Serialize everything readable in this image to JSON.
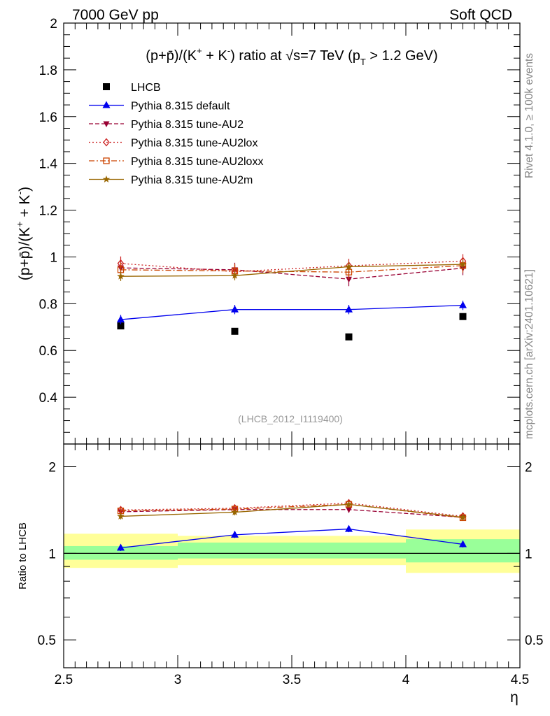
{
  "header": {
    "left_label": "7000 GeV pp",
    "right_label": "Soft QCD"
  },
  "side_labels": {
    "rivet": "Rivet 4.1.0, ≥ 100k events",
    "mcplots": "mcplots.cern.ch [arXiv:2401.10621]"
  },
  "chart_data": [
    {
      "panel": "main",
      "type": "line",
      "title": "(p+p̄)/(K⁺ + K⁻) ratio at √s=7 TeV (p_T > 1.2 GeV)",
      "xlabel": "η",
      "ylabel": "(p+p̄)/(K⁺ + K⁻)",
      "xlim": [
        2.5,
        4.5
      ],
      "ylim": [
        0.2,
        2.0
      ],
      "yticks": [
        "0.4",
        "0.6",
        "0.8",
        "1",
        "1.2",
        "1.4",
        "1.6",
        "1.8",
        "2"
      ],
      "analysis_tag": "(LHCB_2012_I1119400)",
      "legend_position": "top-left",
      "x": [
        2.75,
        3.25,
        3.75,
        4.25
      ],
      "series": [
        {
          "name": "LHCB",
          "color": "#000000",
          "marker": "square",
          "line": "none",
          "values": [
            0.705,
            0.682,
            0.658,
            0.745
          ],
          "errors": [
            0.01,
            0.01,
            0.01,
            0.01
          ]
        },
        {
          "name": "Pythia 8.315 default",
          "color": "#0000ee",
          "marker": "triangle-up",
          "line": "solid",
          "values": [
            0.732,
            0.775,
            0.775,
            0.793
          ],
          "errors": [
            0.02,
            0.02,
            0.02,
            0.02
          ]
        },
        {
          "name": "Pythia 8.315 tune-AU2",
          "color": "#990033",
          "marker": "triangle-down",
          "line": "dashed",
          "values": [
            0.953,
            0.945,
            0.905,
            0.952
          ],
          "errors": [
            0.03,
            0.03,
            0.03,
            0.03
          ]
        },
        {
          "name": "Pythia 8.315 tune-AU2lox",
          "color": "#cc2222",
          "marker": "diamond-open",
          "line": "dotted",
          "values": [
            0.972,
            0.937,
            0.962,
            0.982
          ],
          "errors": [
            0.03,
            0.03,
            0.03,
            0.03
          ]
        },
        {
          "name": "Pythia 8.315 tune-AU2loxx",
          "color": "#cc4400",
          "marker": "square-open",
          "line": "dashdot",
          "values": [
            0.945,
            0.94,
            0.935,
            0.963
          ],
          "errors": [
            0.03,
            0.03,
            0.03,
            0.03
          ]
        },
        {
          "name": "Pythia 8.315 tune-AU2m",
          "color": "#996600",
          "marker": "star",
          "line": "solid",
          "values": [
            0.917,
            0.92,
            0.958,
            0.968
          ],
          "errors": [
            0.02,
            0.02,
            0.02,
            0.02
          ]
        }
      ]
    },
    {
      "panel": "ratio",
      "type": "line",
      "ylabel": "Ratio to LHCB",
      "xlabel": "η",
      "xlim": [
        2.5,
        4.5
      ],
      "ylim": [
        0.4,
        2.4
      ],
      "yscale": "log",
      "yticks": [
        "0.5",
        "1",
        "2"
      ],
      "xticks": [
        "2.5",
        "3",
        "3.5",
        "4",
        "4.5"
      ],
      "bins": [
        {
          "lo": 2.5,
          "hi": 3.0,
          "stat": [
            0.95,
            1.06
          ],
          "total": [
            0.89,
            1.17
          ]
        },
        {
          "lo": 3.0,
          "hi": 3.5,
          "stat": [
            0.96,
            1.09
          ],
          "total": [
            0.91,
            1.15
          ]
        },
        {
          "lo": 3.5,
          "hi": 4.0,
          "stat": [
            0.96,
            1.09
          ],
          "total": [
            0.91,
            1.15
          ]
        },
        {
          "lo": 4.0,
          "hi": 4.5,
          "stat": [
            0.93,
            1.12
          ],
          "total": [
            0.855,
            1.21
          ]
        }
      ],
      "x": [
        2.75,
        3.25,
        3.75,
        4.25
      ],
      "series": [
        {
          "name": "Pythia 8.315 default",
          "values": [
            1.045,
            1.16,
            1.215,
            1.075
          ]
        },
        {
          "name": "Pythia 8.315 tune-AU2",
          "values": [
            1.395,
            1.42,
            1.42,
            1.335
          ]
        },
        {
          "name": "Pythia 8.315 tune-AU2lox",
          "values": [
            1.415,
            1.435,
            1.495,
            1.345
          ]
        },
        {
          "name": "Pythia 8.315 tune-AU2loxx",
          "values": [
            1.405,
            1.425,
            1.48,
            1.33
          ]
        },
        {
          "name": "Pythia 8.315 tune-AU2m",
          "values": [
            1.345,
            1.39,
            1.48,
            1.335
          ]
        }
      ]
    }
  ]
}
